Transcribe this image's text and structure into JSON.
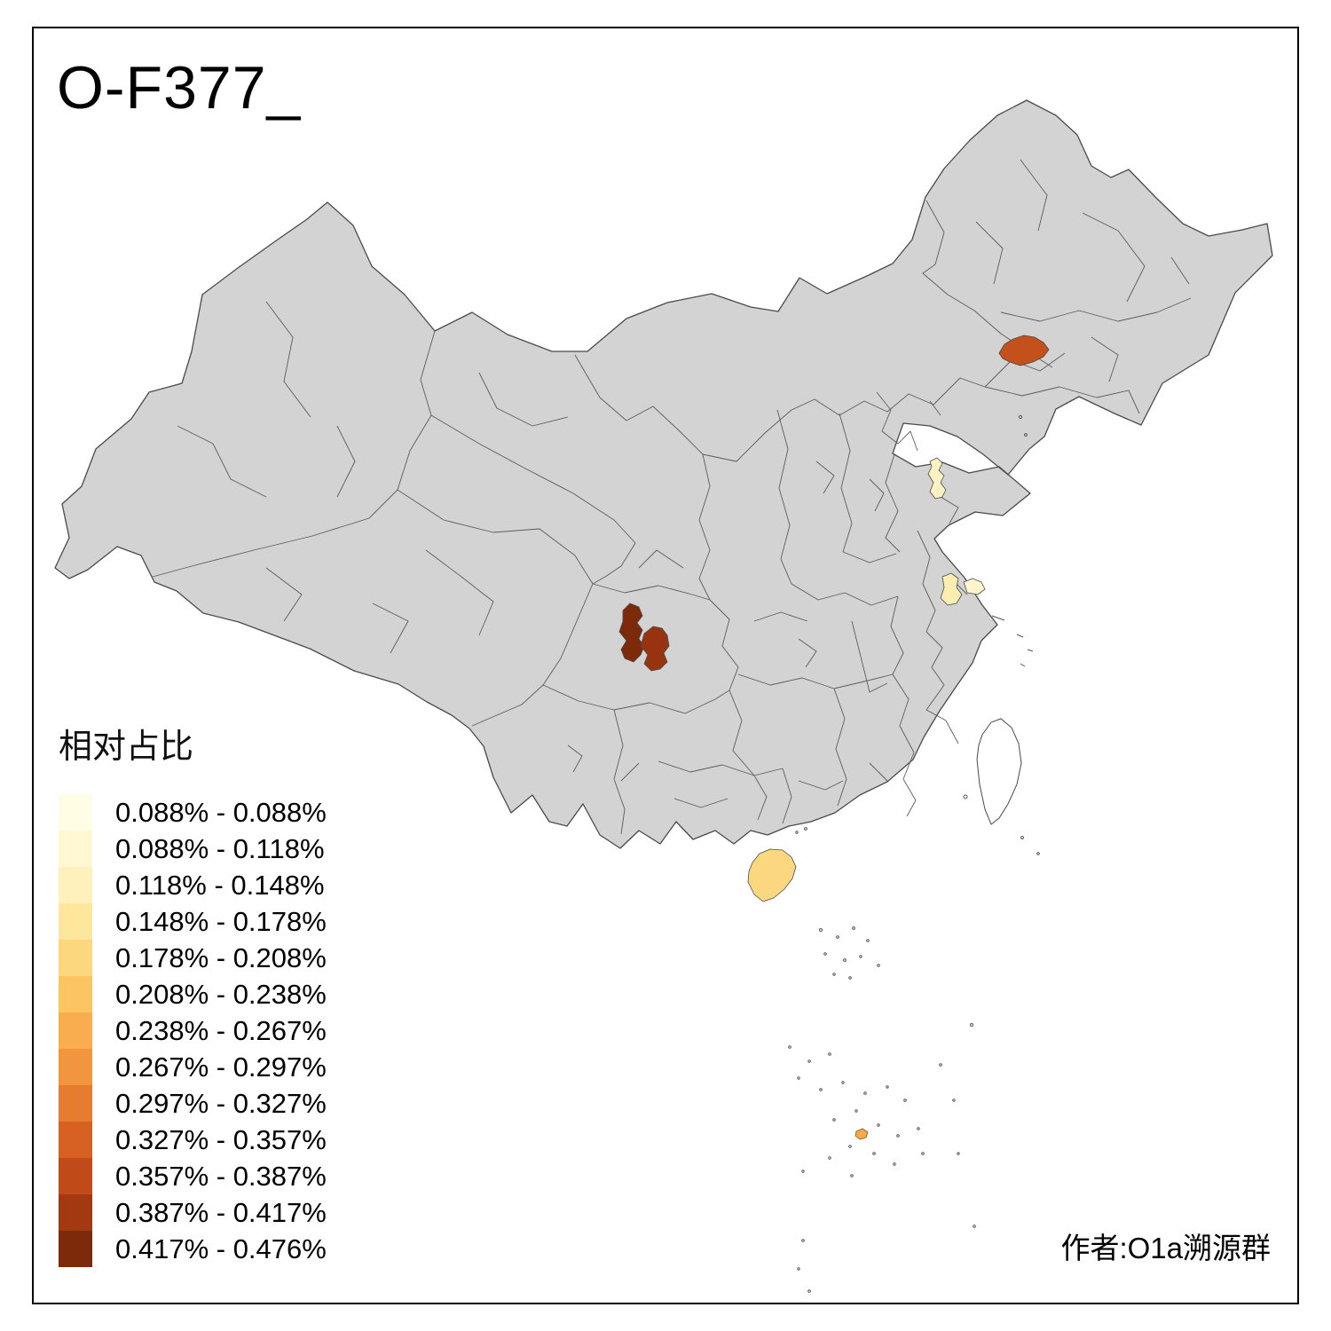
{
  "title": "O-F377_",
  "attribution": "作者:O1a溯源群",
  "legend": {
    "title": "相对占比",
    "entries": [
      {
        "label": "0.088% - 0.088%",
        "color": "#FFFEE5"
      },
      {
        "label": "0.088% - 0.118%",
        "color": "#FFF8D3"
      },
      {
        "label": "0.118% - 0.148%",
        "color": "#FEF1BC"
      },
      {
        "label": "0.148% - 0.178%",
        "color": "#FEE69C"
      },
      {
        "label": "0.178% - 0.208%",
        "color": "#FDD77E"
      },
      {
        "label": "0.208% - 0.238%",
        "color": "#FDC561"
      },
      {
        "label": "0.238% - 0.267%",
        "color": "#FAAD4F"
      },
      {
        "label": "0.267% - 0.297%",
        "color": "#F2953F"
      },
      {
        "label": "0.297% - 0.327%",
        "color": "#E67C30"
      },
      {
        "label": "0.327% - 0.357%",
        "color": "#D66123"
      },
      {
        "label": "0.357% - 0.387%",
        "color": "#C04B18"
      },
      {
        "label": "0.387% - 0.417%",
        "color": "#A23910"
      },
      {
        "label": "0.417% - 0.476%",
        "color": "#7D2A0B"
      }
    ]
  },
  "map": {
    "base_fill": "#D3D3D3",
    "boundary_color": "#4A4A4A",
    "background": "#FFFFFF",
    "regions": [
      {
        "id": "jilin-west",
        "color": "#C4501C",
        "bucket": "0.327% - 0.357%"
      },
      {
        "id": "shandong-central",
        "color": "#FBF2C3",
        "bucket": "0.118% - 0.148%"
      },
      {
        "id": "jiangsu-central",
        "color": "#FCEDB0",
        "bucket": "0.148% - 0.178%"
      },
      {
        "id": "jiangsu-coastal",
        "color": "#FEF5CC",
        "bucket": "0.088% - 0.118%"
      },
      {
        "id": "sichuan-west",
        "color": "#7D2A0B",
        "bucket": "0.417% - 0.476%"
      },
      {
        "id": "sichuan-south",
        "color": "#97330E",
        "bucket": "0.387% - 0.417%"
      },
      {
        "id": "hainan",
        "color": "#FBD77F",
        "bucket": "0.178% - 0.208%"
      },
      {
        "id": "nansha-island",
        "color": "#F7A94C",
        "bucket": "0.238% - 0.267%"
      }
    ]
  }
}
